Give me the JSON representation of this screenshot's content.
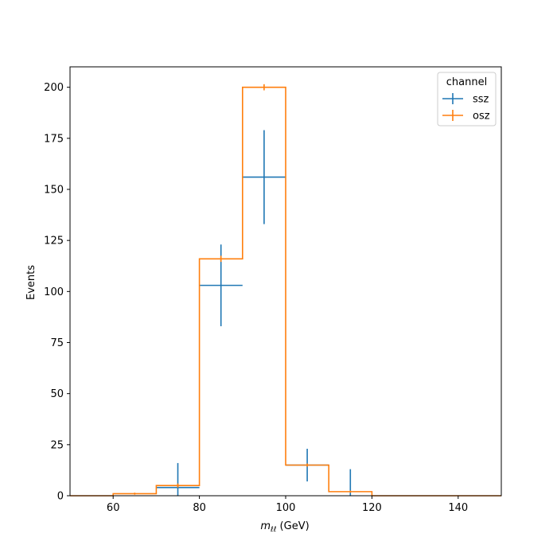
{
  "chart_data": {
    "type": "histogram",
    "xlabel_main": "m",
    "xlabel_sub": "ℓℓ",
    "xlabel_unit": " (GeV)",
    "ylabel": "Events",
    "xlim": [
      50,
      150
    ],
    "ylim": [
      0,
      210
    ],
    "xticks": [
      60,
      80,
      100,
      120,
      140
    ],
    "yticks": [
      0,
      25,
      50,
      75,
      100,
      125,
      150,
      175,
      200
    ],
    "bin_edges": [
      50,
      60,
      70,
      80,
      90,
      100,
      110,
      120,
      130,
      140,
      150
    ],
    "legend": {
      "title": "channel",
      "placement": "top-right"
    },
    "series": [
      {
        "name": "ssz",
        "color": "#1f77b4",
        "style": "errorbar",
        "values": [
          0,
          0,
          4,
          103,
          156,
          15,
          0,
          0,
          0,
          0
        ],
        "errors": [
          0,
          0,
          12,
          20,
          23,
          8,
          13,
          0,
          0,
          0
        ]
      },
      {
        "name": "osz",
        "color": "#ff7f0e",
        "style": "step",
        "values": [
          0,
          1,
          5,
          116,
          200,
          15,
          2,
          0,
          0,
          0
        ],
        "errors": [
          0,
          0.5,
          1,
          1.5,
          1.5,
          0.8,
          0.5,
          0,
          0,
          0
        ]
      }
    ]
  }
}
